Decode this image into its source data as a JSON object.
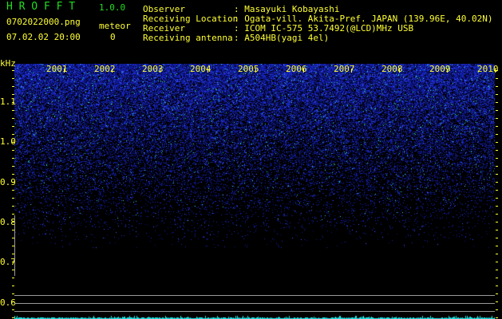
{
  "app": {
    "name": "H R O F F T",
    "version": "1.0.0"
  },
  "file": {
    "filename": "0702022000.png",
    "datetime": "07.02.02 20:00"
  },
  "meteor": {
    "label": "meteor",
    "count": "0"
  },
  "info": [
    {
      "label": "Observer",
      "value": ": Masayuki Kobayashi"
    },
    {
      "label": "Receiving Location",
      "value": ": Ogata-vill. Akita-Pref. JAPAN (139.96E, 40.02N)"
    },
    {
      "label": "Receiver",
      "value": ": ICOM IC-575 53.7492(@LCD)MHz USB"
    },
    {
      "label": "Receiving antenna",
      "value": ": A504HB(yagi 4el)"
    }
  ],
  "axis": {
    "unit": "kHz",
    "y_ticks": [
      "1.1",
      "1.0",
      "0.9",
      "0.8",
      "0.7",
      "0.6"
    ],
    "x_ticks": [
      "2001",
      "2002",
      "2003",
      "2004",
      "2005",
      "2006",
      "2007",
      "2008",
      "2009",
      "2010"
    ]
  },
  "colors": {
    "text": "#ffff33",
    "title": "#22dd22",
    "signal": "#2a3cff",
    "meteor_bar": "#22e0e0"
  }
}
